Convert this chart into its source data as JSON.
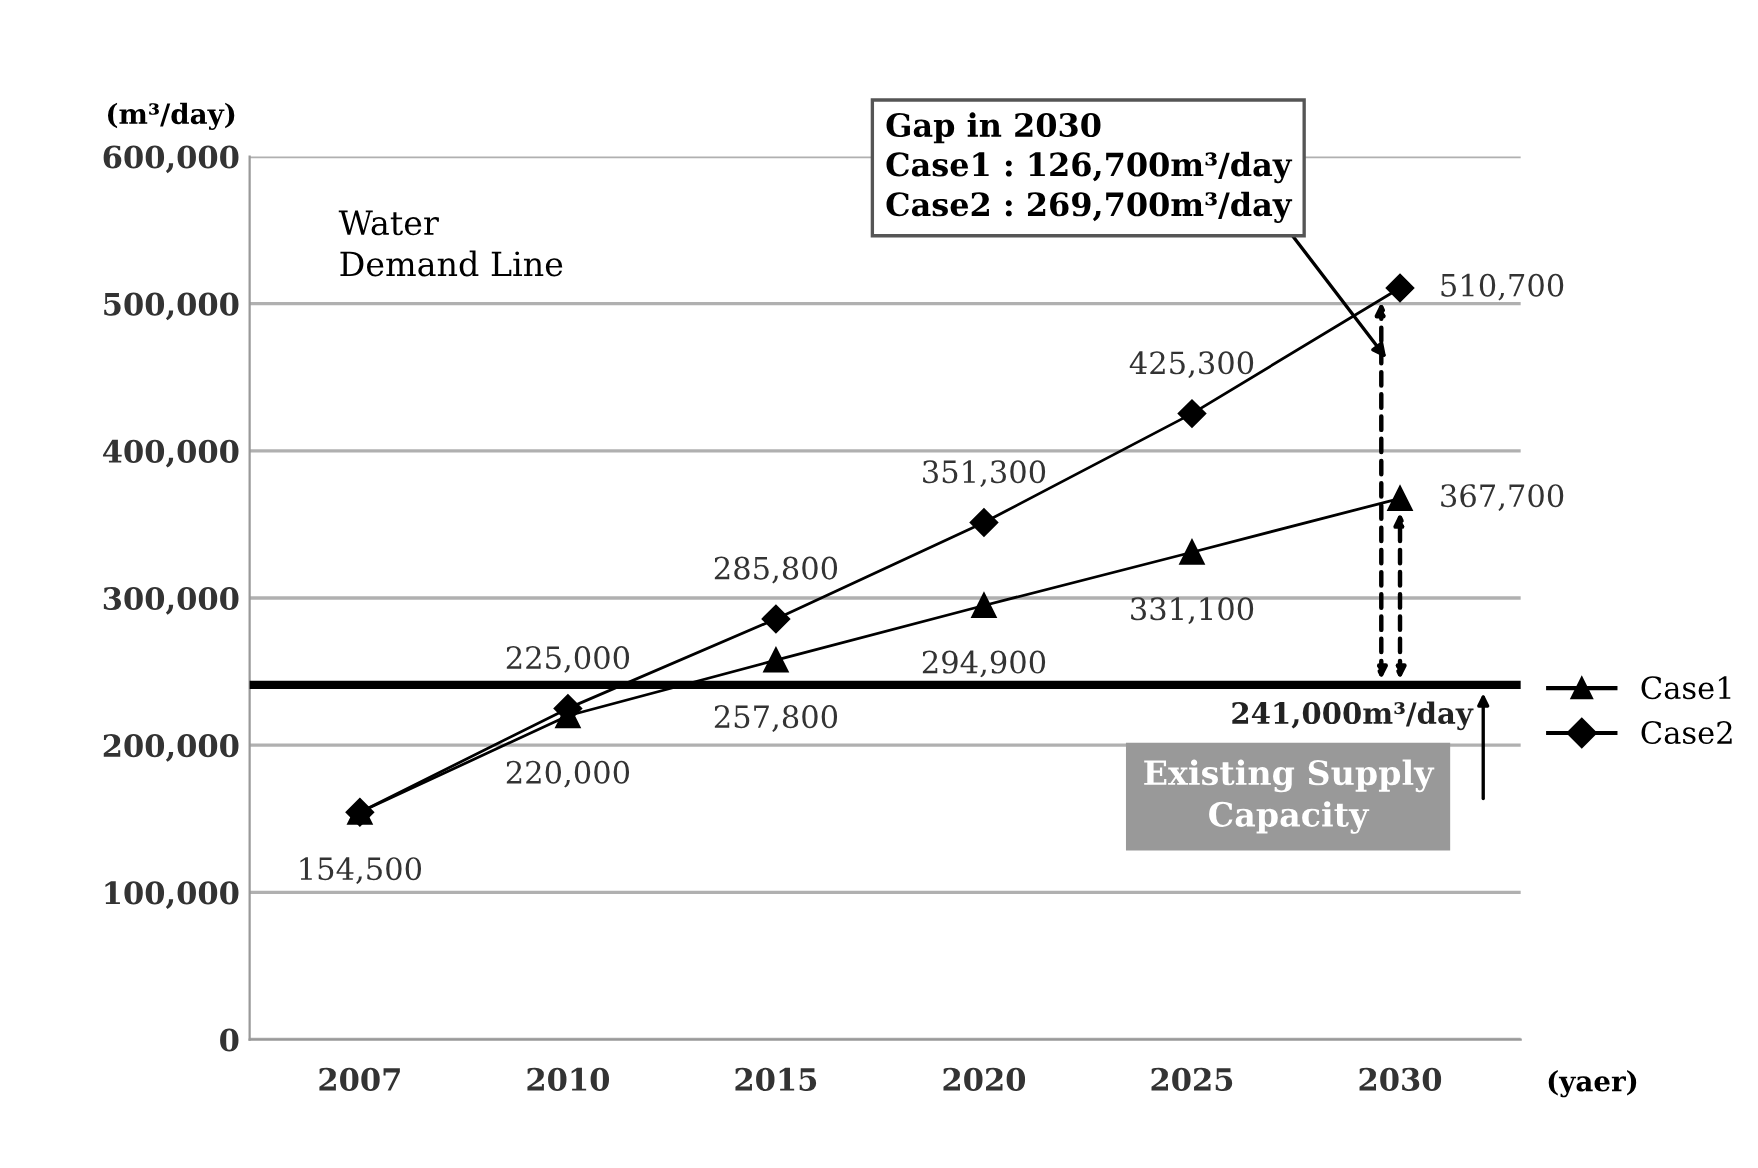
{
  "chart_data": {
    "type": "line",
    "ylabel": "(m³/day)",
    "xlabel": "(yaer)",
    "categories": [
      "2007",
      "2010",
      "2015",
      "2020",
      "2025",
      "2030"
    ],
    "series": [
      {
        "name": "Case1",
        "color": "#000000",
        "marker": "triangle",
        "values": [
          154500,
          220000,
          257800,
          294900,
          331100,
          367700
        ],
        "value_labels": [
          "154,500",
          "220,000",
          "257,800",
          "294,900",
          "331,100",
          "367,700"
        ]
      },
      {
        "name": "Case2",
        "color": "#000000",
        "marker": "diamond",
        "values": [
          154500,
          225000,
          285800,
          351300,
          425300,
          510700
        ],
        "value_labels": [
          null,
          "225,000",
          "285,800",
          "351,300",
          "425,300",
          "510,700"
        ]
      }
    ],
    "ylim": [
      0,
      600000
    ],
    "yticks": [
      {
        "value": 0,
        "label": "0"
      },
      {
        "value": 100000,
        "label": "100,000"
      },
      {
        "value": 200000,
        "label": "200,000"
      },
      {
        "value": 300000,
        "label": "300,000"
      },
      {
        "value": 400000,
        "label": "400,000"
      },
      {
        "value": 500000,
        "label": "500,000"
      },
      {
        "value": 600000,
        "label": "600,000"
      }
    ],
    "ref_lines": [
      {
        "axis": "y",
        "value": 241000,
        "label": "241,000m³/day",
        "color": "#000000"
      }
    ],
    "annotations": [
      "Water\nDemand Line",
      "Gap in 2030\nCase1 : 126,700m³/day\nCase2 : 269,700m³/day",
      "Existing Supply\nCapacity"
    ],
    "grid": "y",
    "legend": "right"
  }
}
